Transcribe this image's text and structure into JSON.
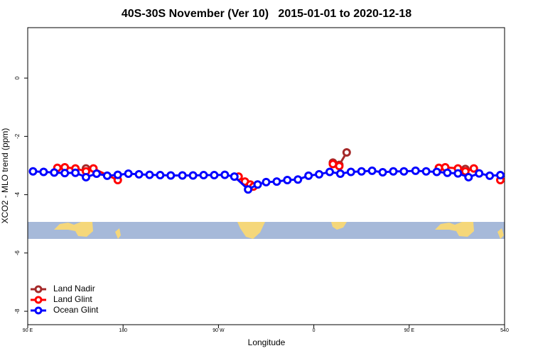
{
  "chart_data": {
    "type": "line",
    "title": "40S-30S November (Ver 10)   2015-01-01 to 2020-12-18",
    "xlabel": "Longitude",
    "ylabel": "XCO2 - MLO trend (ppm)",
    "xlim": [
      90,
      540
    ],
    "ylim": [
      -8.46,
      1.73
    ],
    "xticks": [
      {
        "value": 90,
        "label": "90 E"
      },
      180,
      {
        "value": 270,
        "label": "90 W"
      },
      {
        "value": 360,
        "label": "0"
      },
      {
        "value": 450,
        "label": "90 E"
      },
      540
    ],
    "yticks": [
      0,
      -2,
      -4,
      -6,
      -8
    ],
    "legend": "bottom-left",
    "series": [
      {
        "name": "Land Nadir",
        "color": "#a52a2a",
        "x": [
          145,
          null,
          378,
          384,
          391,
          null,
          503
        ],
        "values": [
          -3.1,
          null,
          -2.9,
          -2.98,
          -2.55,
          null,
          -3.12
        ]
      },
      {
        "name": "Land Glint",
        "color": "#ff0000",
        "x": [
          118,
          125,
          135,
          145,
          152,
          175,
          null,
          289,
          295,
          300,
          303,
          null,
          378,
          384,
          null,
          478,
          484,
          496,
          503,
          511,
          null,
          536
        ],
        "values": [
          -3.08,
          -3.06,
          -3.1,
          -3.2,
          -3.1,
          -3.5,
          null,
          -3.38,
          -3.55,
          -3.65,
          -3.72,
          null,
          -2.95,
          -3.02,
          null,
          -3.08,
          -3.06,
          -3.1,
          -3.2,
          -3.1,
          null,
          -3.5
        ]
      },
      {
        "name": "Ocean Glint",
        "color": "#0000ff",
        "x": [
          95,
          105,
          115,
          125,
          135,
          145,
          155,
          165,
          175,
          185,
          195,
          205,
          215,
          225,
          236,
          246,
          256,
          266,
          276,
          285,
          298,
          307,
          315,
          325,
          335,
          345,
          355,
          365,
          375,
          385,
          395,
          405,
          415,
          425,
          435,
          445,
          456,
          466,
          476,
          486,
          496,
          506,
          516,
          526,
          536
        ],
        "values": [
          -3.2,
          -3.22,
          -3.24,
          -3.26,
          -3.25,
          -3.4,
          -3.28,
          -3.35,
          -3.32,
          -3.28,
          -3.3,
          -3.32,
          -3.33,
          -3.34,
          -3.34,
          -3.34,
          -3.33,
          -3.33,
          -3.32,
          -3.38,
          -3.82,
          -3.65,
          -3.57,
          -3.55,
          -3.5,
          -3.48,
          -3.35,
          -3.3,
          -3.22,
          -3.28,
          -3.22,
          -3.2,
          -3.18,
          -3.23,
          -3.2,
          -3.2,
          -3.18,
          -3.2,
          -3.22,
          -3.25,
          -3.27,
          -3.4,
          -3.27,
          -3.35,
          -3.33
        ]
      }
    ]
  }
}
